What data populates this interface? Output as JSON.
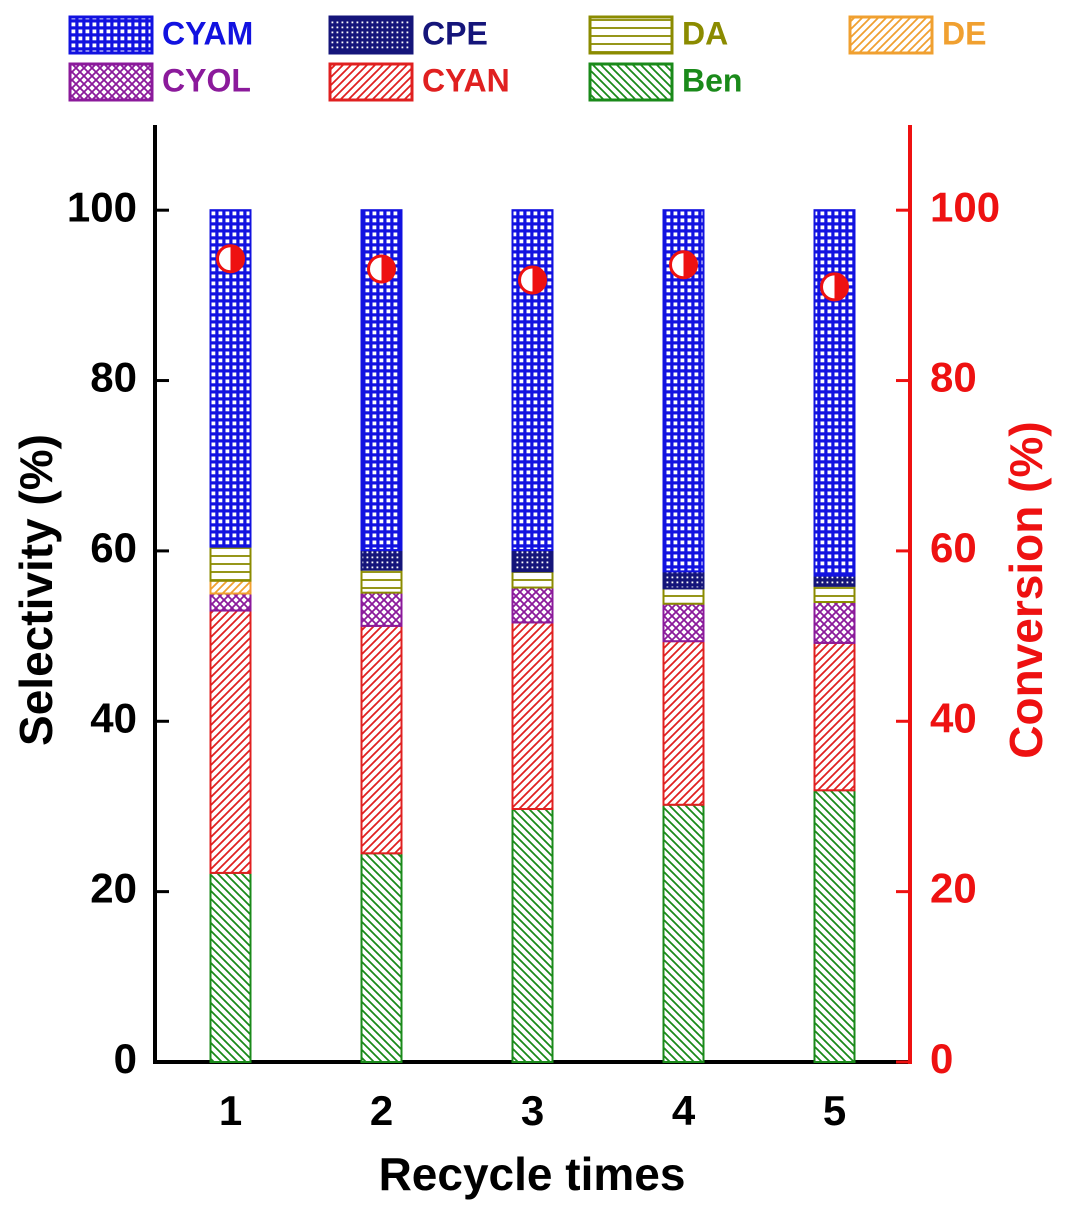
{
  "chart_data": {
    "type": "bar",
    "stacked": true,
    "x_label": "Recycle times",
    "y_label": "Selectivity (%)",
    "y2_label": "Conversion (%)",
    "categories": [
      "1",
      "2",
      "3",
      "4",
      "5"
    ],
    "ylim": [
      0,
      110
    ],
    "yticks": [
      0,
      20,
      40,
      60,
      80,
      100
    ],
    "y2lim": [
      0,
      110
    ],
    "y2ticks": [
      0,
      20,
      40,
      60,
      80,
      100
    ],
    "y2_color": "#ee1111",
    "series": [
      {
        "name": "Ben",
        "color": "#1a8a1a",
        "hatch": "diag-down",
        "values": [
          22.2,
          24.5,
          29.7,
          30.2,
          31.9
        ]
      },
      {
        "name": "CYAN",
        "color": "#e02020",
        "hatch": "diag-up",
        "values": [
          30.8,
          26.7,
          21.9,
          19.2,
          17.3
        ]
      },
      {
        "name": "CYOL",
        "color": "#8b1a9b",
        "hatch": "cross",
        "values": [
          2.0,
          3.9,
          4.1,
          4.4,
          4.8
        ]
      },
      {
        "name": "DE",
        "color": "#f0a030",
        "hatch": "diag-up",
        "values": [
          1.5,
          0,
          0,
          0,
          0
        ]
      },
      {
        "name": "DA",
        "color": "#8b8b00",
        "hatch": "horizontal",
        "values": [
          4.0,
          2.7,
          1.9,
          1.8,
          1.9
        ]
      },
      {
        "name": "CPE",
        "color": "#15157a",
        "hatch": "dense-grid",
        "values": [
          0,
          2.3,
          2.5,
          2.0,
          1.2
        ]
      },
      {
        "name": "CYAM",
        "color": "#1212e0",
        "hatch": "grid",
        "values": [
          39.5,
          39.9,
          39.9,
          42.4,
          42.9
        ]
      },
      {
        "axis": "y2",
        "type": "scatter",
        "color": "#ee1111",
        "values": [
          94.3,
          93.1,
          91.8,
          93.6,
          91.0
        ]
      }
    ]
  }
}
